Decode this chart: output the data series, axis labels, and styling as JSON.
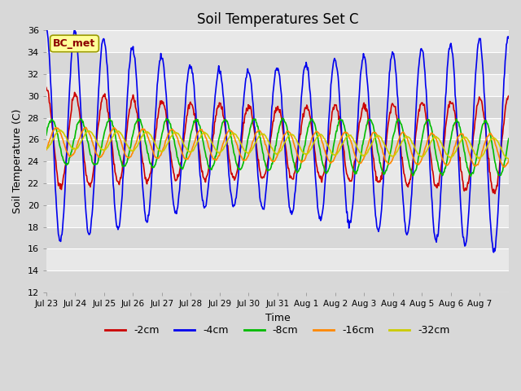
{
  "title": "Soil Temperatures Set C",
  "xlabel": "Time",
  "ylabel": "Soil Temperature (C)",
  "ylim": [
    12,
    36
  ],
  "yticks": [
    12,
    14,
    16,
    18,
    20,
    22,
    24,
    26,
    28,
    30,
    32,
    34,
    36
  ],
  "x_labels": [
    "Jul 23",
    "Jul 24",
    "Jul 25",
    "Jul 26",
    "Jul 27",
    "Jul 28",
    "Jul 29",
    "Jul 30",
    "Jul 31",
    "Aug 1",
    "Aug 2",
    "Aug 3",
    "Aug 4",
    "Aug 5",
    "Aug 6",
    "Aug 7"
  ],
  "legend_labels": [
    "-2cm",
    "-4cm",
    "-8cm",
    "-16cm",
    "-32cm"
  ],
  "line_colors": [
    "#cc0000",
    "#0000ee",
    "#00bb00",
    "#ff8800",
    "#cccc00"
  ],
  "annotation_text": "BC_met",
  "annotation_bg": "#ffff99",
  "annotation_border": "#999900",
  "background_color": "#d8d8d8",
  "plot_bg": "#d8d8d8",
  "grid_color": "#ffffff",
  "title_fontsize": 12,
  "n_days": 16,
  "figwidth": 6.4,
  "figheight": 4.8,
  "dpi": 100,
  "band_colors": [
    "#d8d8d8",
    "#e8e8e8"
  ]
}
